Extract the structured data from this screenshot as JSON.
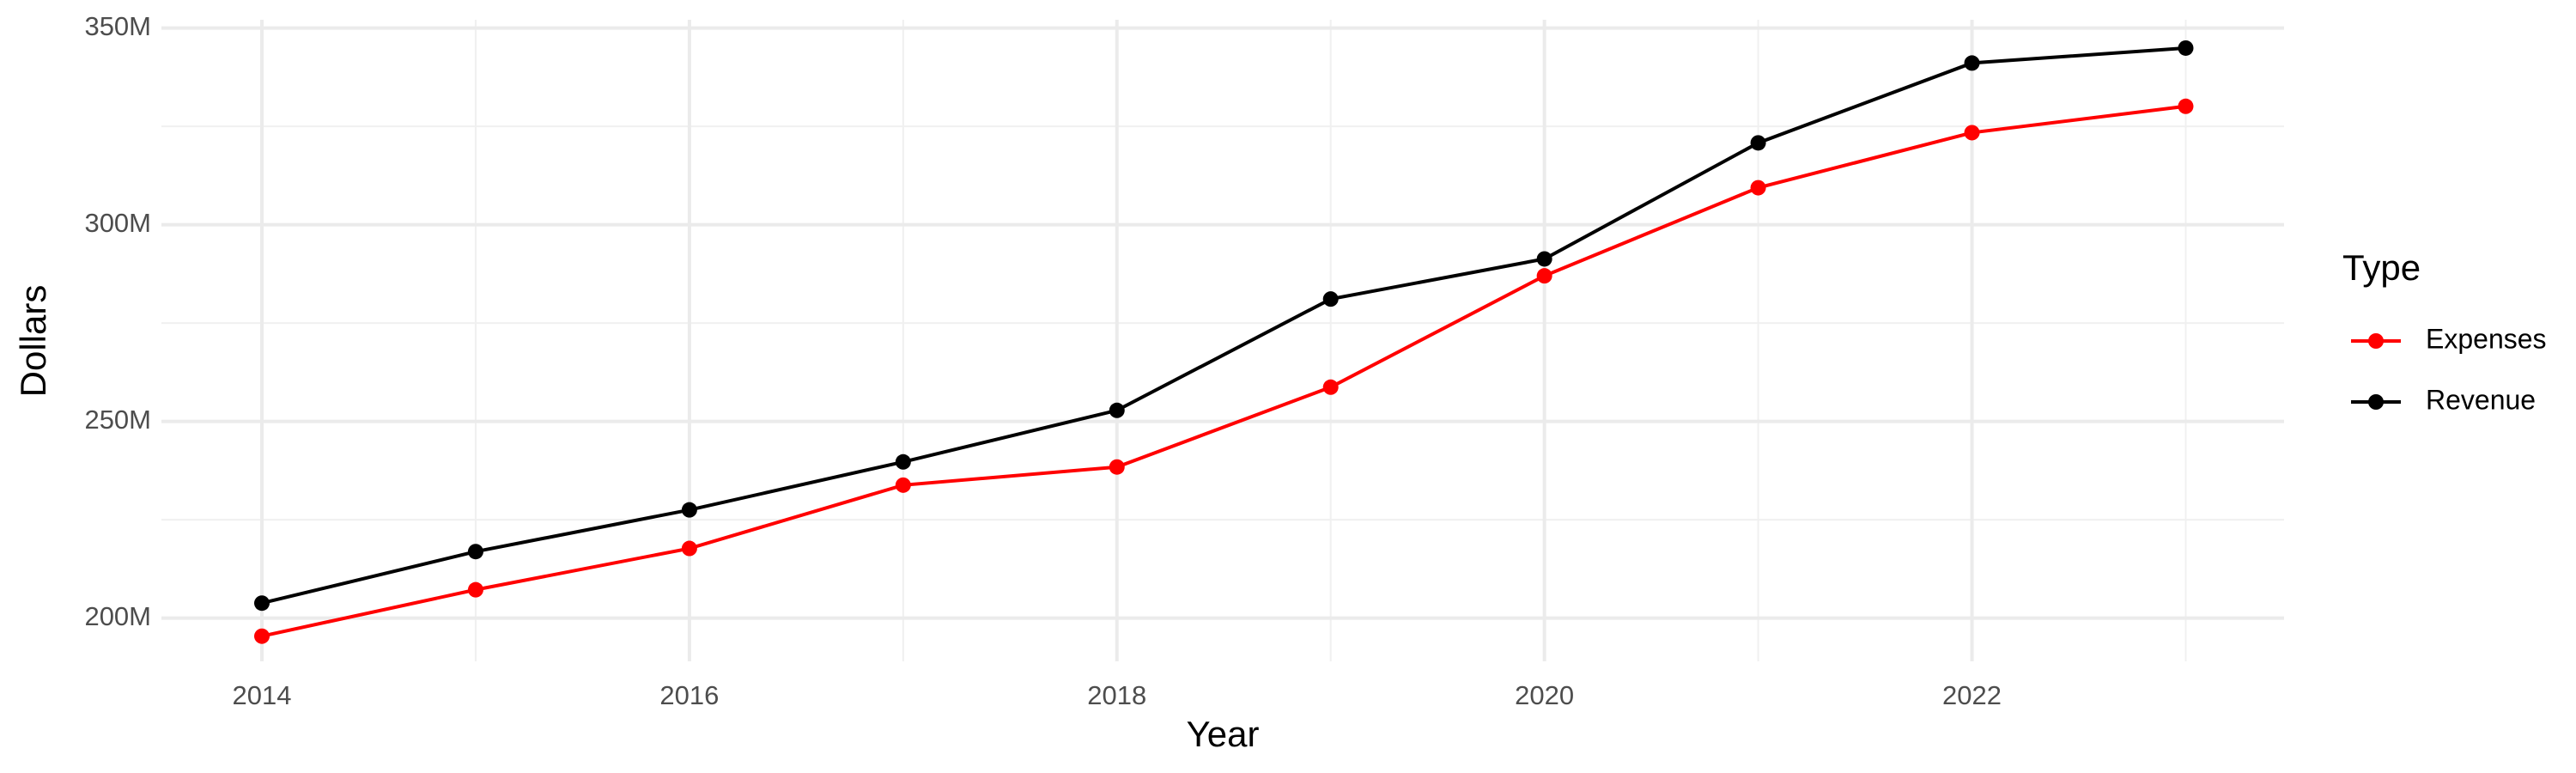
{
  "chart_data": {
    "type": "line",
    "x_label": "Year",
    "y_label": "Dollars",
    "legend_title": "Type",
    "x": [
      2014,
      2015,
      2016,
      2017,
      2018,
      2019,
      2020,
      2021,
      2022,
      2023
    ],
    "series": [
      {
        "name": "Expenses",
        "color": "#ff0000",
        "values": [
          195400000,
          207200000,
          217700000,
          233800000,
          238400000,
          258700000,
          287000000,
          309400000,
          323400000,
          330100000
        ]
      },
      {
        "name": "Revenue",
        "color": "#000000",
        "values": [
          203800000,
          216900000,
          227500000,
          239700000,
          252800000,
          281100000,
          291300000,
          320800000,
          341100000,
          344900000
        ]
      }
    ],
    "xlim": [
      2013.53,
      2023.46
    ],
    "xticks": [
      2014,
      2016,
      2018,
      2020,
      2022
    ],
    "ylim": [
      189000000,
      352100000
    ],
    "yticks": [
      {
        "value": 200000000,
        "label": "200M"
      },
      {
        "value": 250000000,
        "label": "250M"
      },
      {
        "value": 300000000,
        "label": "300M"
      },
      {
        "value": 350000000,
        "label": "350M"
      }
    ],
    "grid": true,
    "legend_position": "right"
  }
}
